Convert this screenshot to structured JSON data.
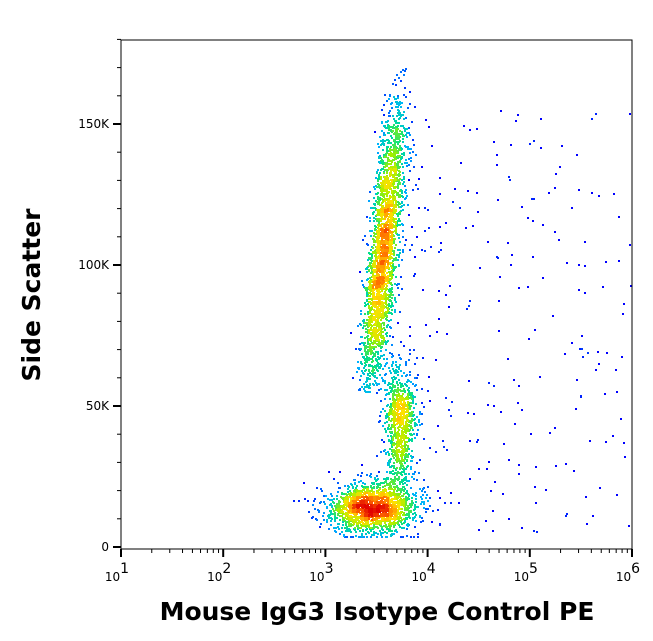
{
  "chart_data": {
    "type": "scatter",
    "subtype": "flow-cytometry density dot plot",
    "xlabel": "Mouse IgG3 Isotype Control PE",
    "ylabel": "Side Scatter",
    "x_scale": "log10",
    "xlim": [
      10,
      1000000
    ],
    "ylim": [
      0,
      180000
    ],
    "x_ticks": [
      {
        "base": "10",
        "exp": "1",
        "value": 10
      },
      {
        "base": "10",
        "exp": "2",
        "value": 100
      },
      {
        "base": "10",
        "exp": "3",
        "value": 1000
      },
      {
        "base": "10",
        "exp": "4",
        "value": 10000
      },
      {
        "base": "10",
        "exp": "5",
        "value": 100000
      },
      {
        "base": "10",
        "exp": "6",
        "value": 1000000
      }
    ],
    "y_ticks": [
      {
        "label": "0",
        "value": 0
      },
      {
        "label": "50K",
        "value": 50000
      },
      {
        "label": "100K",
        "value": 100000
      },
      {
        "label": "150K",
        "value": 150000
      }
    ],
    "grid": false,
    "color_scale": [
      "#0000ff",
      "#00b4ff",
      "#00e08c",
      "#a0f000",
      "#ffe000",
      "#ff6a00",
      "#e00000"
    ],
    "populations": [
      {
        "name": "low-SSC cluster",
        "x_center": 2800,
        "log_x_sd": 0.22,
        "y_center": 14000,
        "y_sd": 4500,
        "count": 1700
      },
      {
        "name": "main high-SSC population",
        "x_center": 3600,
        "log_x_sd": 0.07,
        "y_center": 105000,
        "y_sd": 27000,
        "y_range": [
          55000,
          170000
        ],
        "log_x_slope_per_100K": 0.28,
        "count": 2600
      },
      {
        "name": "mid-SSC population",
        "x_center": 5300,
        "log_x_sd": 0.08,
        "y_center": 48000,
        "y_sd": 9000,
        "count": 700
      },
      {
        "name": "bridge",
        "x_center": 5000,
        "log_x_sd": 0.07,
        "y_center": 30000,
        "y_sd": 8000,
        "count": 250
      },
      {
        "name": "scattered events",
        "log_x_range": [
          3.8,
          6.0
        ],
        "y_range": [
          5000,
          155000
        ],
        "count": 260
      }
    ]
  }
}
